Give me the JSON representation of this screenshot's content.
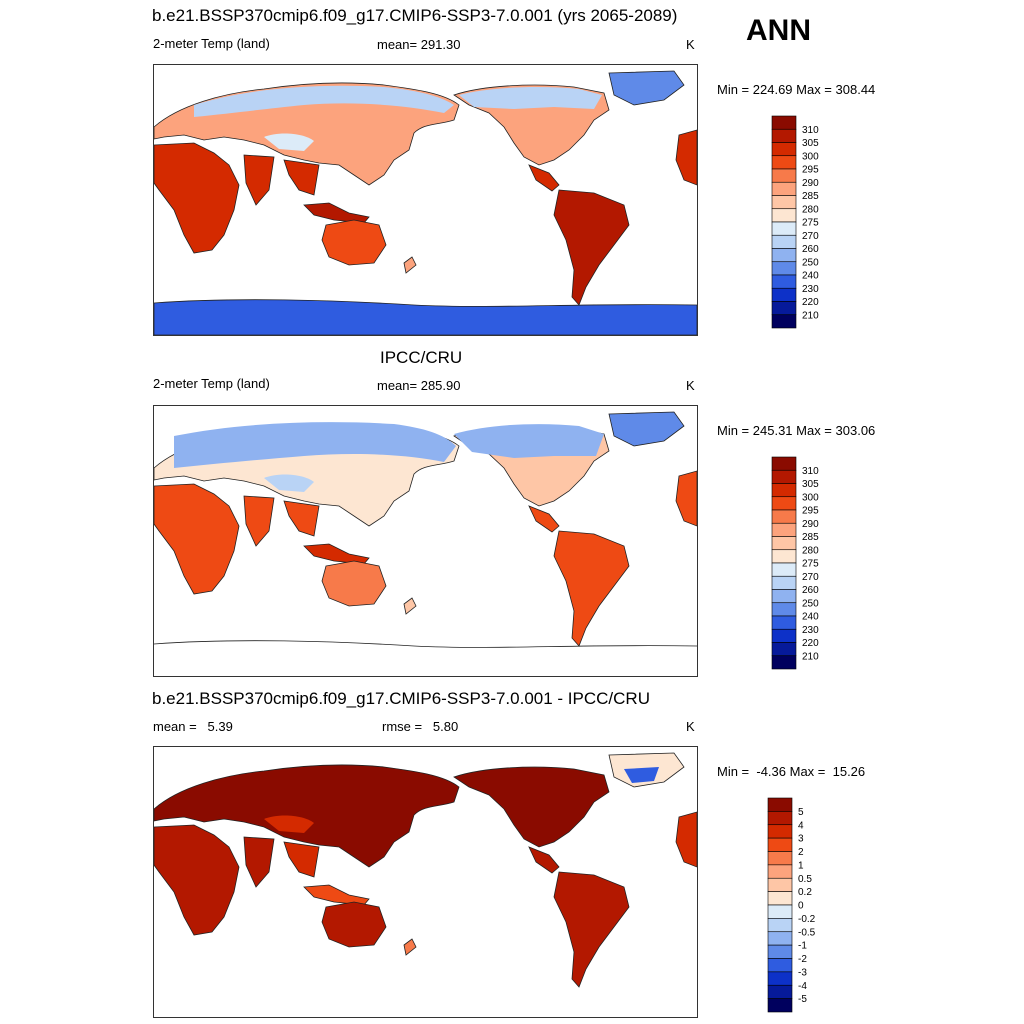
{
  "season": "ANN",
  "chart_data": [
    {
      "type": "heatmap",
      "title": "b.e21.BSSP370cmip6.f09_g17.CMIP6-SSP3-7.0.001 (yrs 2065-2089)",
      "variable": "2-meter Temp (land)",
      "stat_text": "mean= 291.30",
      "mean": 291.3,
      "units": "K",
      "minmax_text": "Min = 224.69 Max = 308.44",
      "min": 224.69,
      "max": 308.44,
      "colorbar_levels": [
        "310",
        "305",
        "300",
        "295",
        "290",
        "285",
        "280",
        "275",
        "270",
        "260",
        "250",
        "240",
        "230",
        "220",
        "210"
      ],
      "colors": [
        "#8a0b00",
        "#b31800",
        "#d42a00",
        "#ee4a14",
        "#f77a4a",
        "#fca37d",
        "#fec6a6",
        "#fde6d2",
        "#dcebf8",
        "#b9d3f5",
        "#8fb2f0",
        "#5f8ae8",
        "#2f5ce0",
        "#0d31c8",
        "#061a9a",
        "#00005e"
      ]
    },
    {
      "type": "heatmap",
      "title": "IPCC/CRU",
      "variable": "2-meter Temp (land)",
      "stat_text": "mean= 285.90",
      "mean": 285.9,
      "units": "K",
      "minmax_text": "Min = 245.31 Max = 303.06",
      "min": 245.31,
      "max": 303.06,
      "colorbar_levels": [
        "310",
        "305",
        "300",
        "295",
        "290",
        "285",
        "280",
        "275",
        "270",
        "260",
        "250",
        "240",
        "230",
        "220",
        "210"
      ],
      "colors": [
        "#8a0b00",
        "#b31800",
        "#d42a00",
        "#ee4a14",
        "#f77a4a",
        "#fca37d",
        "#fec6a6",
        "#fde6d2",
        "#dcebf8",
        "#b9d3f5",
        "#8fb2f0",
        "#5f8ae8",
        "#2f5ce0",
        "#0d31c8",
        "#061a9a",
        "#00005e"
      ]
    },
    {
      "type": "heatmap",
      "title": "b.e21.BSSP370cmip6.f09_g17.CMIP6-SSP3-7.0.001 - IPCC/CRU",
      "mean_text": "mean =   5.39",
      "rmse_text": "rmse =   5.80",
      "mean": 5.39,
      "rmse": 5.8,
      "units": "K",
      "minmax_text": "Min =  -4.36 Max =  15.26",
      "min": -4.36,
      "max": 15.26,
      "colorbar_levels": [
        "5",
        "4",
        "3",
        "2",
        "1",
        "0.5",
        "0.2",
        "0",
        "-0.2",
        "-0.5",
        "-1",
        "-2",
        "-3",
        "-4",
        "-5"
      ],
      "colors": [
        "#8a0b00",
        "#b31800",
        "#d42a00",
        "#ee4a14",
        "#f77a4a",
        "#fca37d",
        "#fec6a6",
        "#fde6d2",
        "#dcebf8",
        "#b9d3f5",
        "#8fb2f0",
        "#5f8ae8",
        "#2f5ce0",
        "#0d31c8",
        "#061a9a",
        "#00005e"
      ]
    }
  ]
}
